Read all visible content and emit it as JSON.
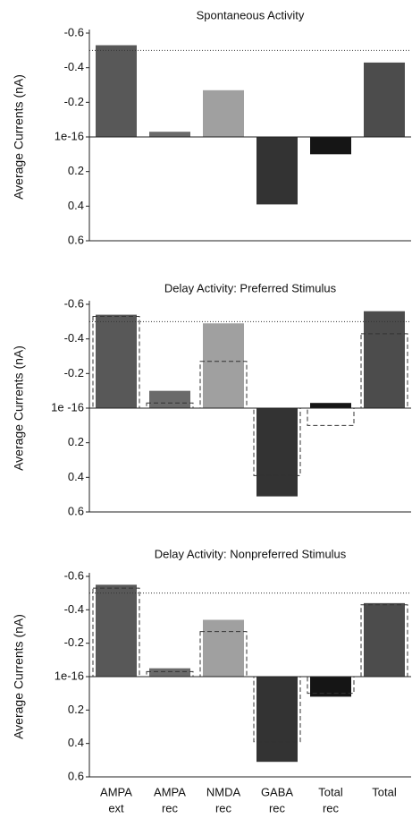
{
  "chart_data": [
    {
      "type": "bar",
      "title": "Spontaneous Activity",
      "ylabel": "Average Currents (nA)",
      "values": [
        -0.53,
        -0.03,
        -0.27,
        0.39,
        0.1,
        -0.43
      ],
      "colors": [
        "#585858",
        "#6a6a6a",
        "#a0a0a0",
        "#333333",
        "#151515",
        "#4c4c4c"
      ],
      "reference_line": -0.5,
      "ylim": [
        -0.6,
        0.6
      ],
      "inverted": true,
      "yticks": [
        -0.6,
        -0.4,
        -0.2,
        {
          "value": 1e-16,
          "label": "1e-16"
        },
        0.2,
        0.4,
        0.6
      ]
    },
    {
      "type": "bar",
      "title": "Delay Activity: Preferred Stimulus",
      "ylabel": "Average Currents (nA)",
      "values": [
        -0.54,
        -0.1,
        -0.49,
        0.51,
        -0.03,
        -0.56
      ],
      "colors": [
        "#585858",
        "#6a6a6a",
        "#a0a0a0",
        "#333333",
        "#151515",
        "#4c4c4c"
      ],
      "reference_values": [
        -0.53,
        -0.03,
        -0.27,
        0.39,
        0.1,
        -0.43
      ],
      "reference_line": -0.5,
      "ylim": [
        -0.6,
        0.6
      ],
      "inverted": true,
      "yticks": [
        -0.6,
        -0.4,
        -0.2,
        {
          "value": 1e-16,
          "label": "1e -16"
        },
        0.2,
        0.4,
        0.6
      ]
    },
    {
      "type": "bar",
      "title": "Delay Activity: Nonpreferred Stimulus",
      "ylabel": "Average Currents (nA)",
      "categories": [
        [
          "AMPA",
          "ext"
        ],
        [
          "AMPA",
          "rec"
        ],
        [
          "NMDA",
          "rec"
        ],
        [
          "GABA",
          "rec"
        ],
        [
          "Total",
          "rec"
        ],
        [
          "Total"
        ]
      ],
      "values": [
        -0.55,
        -0.05,
        -0.34,
        0.51,
        0.12,
        -0.44
      ],
      "colors": [
        "#585858",
        "#6a6a6a",
        "#a0a0a0",
        "#333333",
        "#151515",
        "#4c4c4c"
      ],
      "reference_values": [
        -0.53,
        -0.03,
        -0.27,
        0.39,
        0.1,
        -0.43
      ],
      "reference_line": -0.5,
      "ylim": [
        -0.6,
        0.6
      ],
      "inverted": true,
      "yticks": [
        -0.6,
        -0.4,
        -0.2,
        {
          "value": 1e-16,
          "label": "1e-16"
        },
        0.2,
        0.4,
        0.6
      ]
    }
  ]
}
